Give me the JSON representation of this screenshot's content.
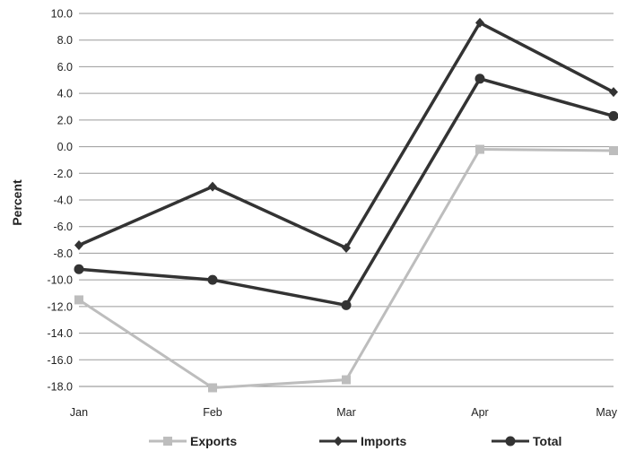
{
  "chart_data": {
    "type": "line",
    "categories": [
      "Jan",
      "Feb",
      "Mar",
      "Apr",
      "May"
    ],
    "ylabel": "Percent",
    "ylim": [
      -18,
      10
    ],
    "yticks": [
      "10.0",
      "8.0",
      "6.0",
      "4.0",
      "2.0",
      "0.0",
      "-2.0",
      "-4.0",
      "-6.0",
      "-8.0",
      "-10.0",
      "-12.0",
      "-14.0",
      "-16.0",
      "-18.0"
    ],
    "grid": true,
    "legend_position": "bottom",
    "series": [
      {
        "name": "Exports",
        "values": [
          -11.5,
          -18.1,
          -17.5,
          -0.2,
          -0.3
        ],
        "color": "#bdbdbd",
        "marker": "square"
      },
      {
        "name": "Imports",
        "values": [
          -7.4,
          -3.0,
          -7.6,
          9.3,
          4.1
        ],
        "color": "#333333",
        "marker": "diamond"
      },
      {
        "name": "Total",
        "values": [
          -9.2,
          -10.0,
          -11.9,
          5.1,
          2.3
        ],
        "color": "#333333",
        "marker": "circle"
      }
    ]
  }
}
